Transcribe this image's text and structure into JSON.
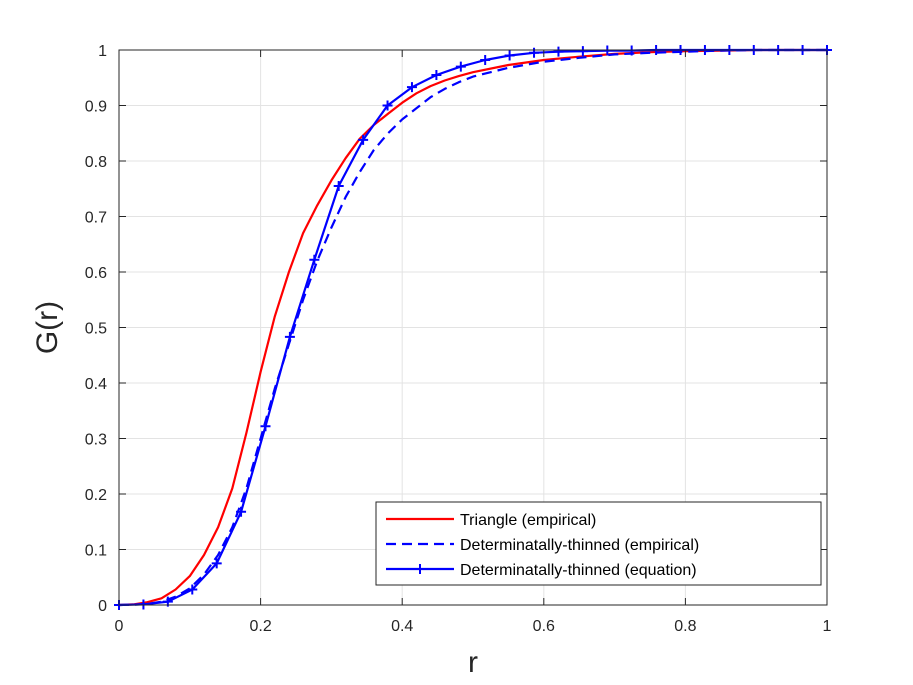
{
  "chart_data": {
    "type": "line",
    "title": "",
    "xlabel": "r",
    "ylabel": "G(r)",
    "xlim": [
      0,
      1
    ],
    "ylim": [
      0,
      1
    ],
    "grid": true,
    "legend_position": "bottom-right",
    "x_ticks": [
      "0",
      "0.2",
      "0.4",
      "0.6",
      "0.8",
      "1"
    ],
    "y_ticks": [
      "0",
      "0.1",
      "0.2",
      "0.3",
      "0.4",
      "0.5",
      "0.6",
      "0.7",
      "0.8",
      "0.9",
      "1"
    ],
    "series": [
      {
        "name": "Triangle (empirical)",
        "color": "#ff0000",
        "style": "solid",
        "marker": "none",
        "x": [
          0,
          0.02,
          0.04,
          0.06,
          0.08,
          0.1,
          0.12,
          0.14,
          0.16,
          0.18,
          0.2,
          0.22,
          0.24,
          0.26,
          0.28,
          0.3,
          0.32,
          0.34,
          0.36,
          0.38,
          0.4,
          0.42,
          0.44,
          0.46,
          0.48,
          0.5,
          0.55,
          0.6,
          0.65,
          0.7,
          0.75,
          0.8,
          0.85,
          0.9,
          1.0
        ],
        "y": [
          0,
          0.001,
          0.005,
          0.012,
          0.028,
          0.052,
          0.09,
          0.14,
          0.21,
          0.31,
          0.42,
          0.52,
          0.6,
          0.67,
          0.72,
          0.765,
          0.805,
          0.84,
          0.865,
          0.885,
          0.905,
          0.922,
          0.935,
          0.945,
          0.953,
          0.96,
          0.973,
          0.982,
          0.988,
          0.993,
          0.996,
          0.998,
          0.999,
          1.0,
          1.0
        ]
      },
      {
        "name": "Determinatally-thinned (empirical)",
        "color": "#0000ff",
        "style": "dashed",
        "marker": "none",
        "x": [
          0,
          0.02,
          0.04,
          0.06,
          0.08,
          0.1,
          0.12,
          0.14,
          0.16,
          0.18,
          0.2,
          0.22,
          0.24,
          0.26,
          0.28,
          0.3,
          0.32,
          0.34,
          0.36,
          0.38,
          0.4,
          0.42,
          0.44,
          0.46,
          0.48,
          0.5,
          0.55,
          0.6,
          0.65,
          0.7,
          0.75,
          0.8,
          0.85,
          0.9,
          1.0
        ],
        "y": [
          0,
          0.0005,
          0.002,
          0.006,
          0.015,
          0.03,
          0.055,
          0.09,
          0.14,
          0.21,
          0.3,
          0.39,
          0.47,
          0.55,
          0.62,
          0.68,
          0.735,
          0.78,
          0.82,
          0.85,
          0.875,
          0.895,
          0.915,
          0.93,
          0.942,
          0.952,
          0.968,
          0.979,
          0.986,
          0.992,
          0.995,
          0.997,
          0.999,
          1.0,
          1.0
        ]
      },
      {
        "name": "Determinatally-thinned (equation)",
        "color": "#0000ff",
        "style": "solid",
        "marker": "plus",
        "x": [
          0,
          0.0345,
          0.069,
          0.1035,
          0.138,
          0.1724,
          0.2069,
          0.2414,
          0.2759,
          0.3103,
          0.3448,
          0.3793,
          0.4138,
          0.4483,
          0.4828,
          0.5172,
          0.5517,
          0.5862,
          0.6207,
          0.6552,
          0.6897,
          0.7241,
          0.7586,
          0.7931,
          0.8276,
          0.8621,
          0.8966,
          0.931,
          0.9655,
          1.0
        ],
        "y": [
          0,
          0.001,
          0.006,
          0.028,
          0.075,
          0.168,
          0.322,
          0.483,
          0.622,
          0.755,
          0.838,
          0.9,
          0.933,
          0.955,
          0.97,
          0.982,
          0.99,
          0.995,
          0.997,
          0.998,
          0.999,
          0.999,
          1.0,
          1.0,
          1.0,
          1.0,
          1.0,
          1.0,
          1.0,
          1.0
        ]
      }
    ]
  }
}
